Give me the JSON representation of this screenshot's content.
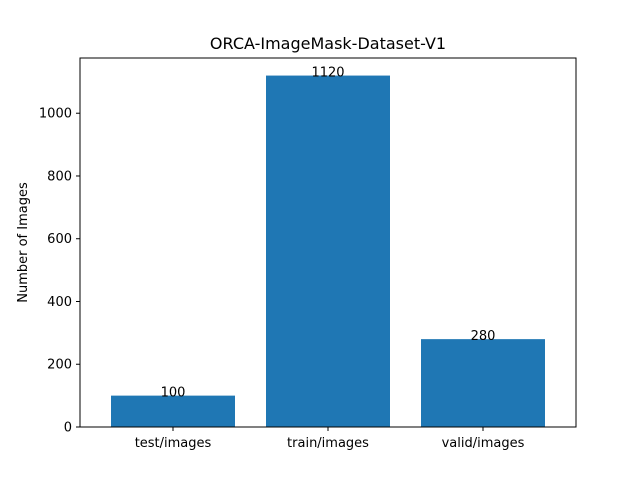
{
  "chart_data": {
    "type": "bar",
    "title": "ORCA-ImageMask-Dataset-V1",
    "xlabel": "",
    "ylabel": "Number of Images",
    "categories": [
      "test/images",
      "train/images",
      "valid/images"
    ],
    "values": [
      100,
      1120,
      280
    ],
    "data_labels": [
      "100",
      "1120",
      "280"
    ],
    "ylim": [
      0,
      1176
    ],
    "yticks": [
      0,
      200,
      400,
      600,
      800,
      1000
    ],
    "grid": false,
    "legend": "none",
    "bar_color": "#1f77b4"
  }
}
